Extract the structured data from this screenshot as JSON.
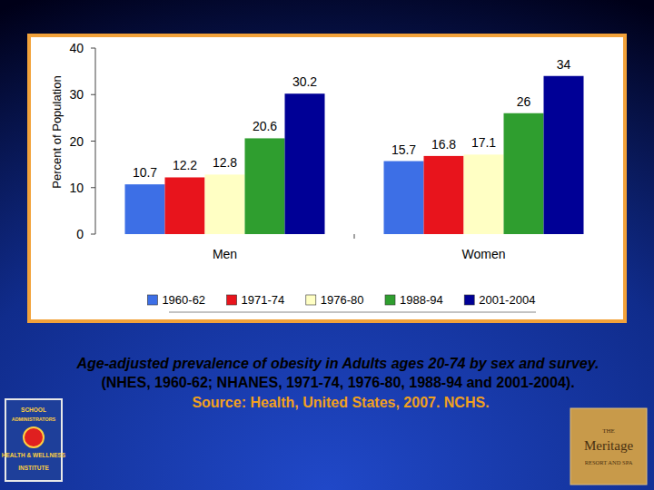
{
  "chart_data": {
    "type": "bar",
    "y_label": "Percent of Population",
    "categories": [
      "Men",
      "Women"
    ],
    "series": [
      {
        "name": "1960-62",
        "color": "#3d6fe6",
        "values": [
          10.7,
          15.7
        ]
      },
      {
        "name": "1971-74",
        "color": "#e8141c",
        "values": [
          12.2,
          16.8
        ]
      },
      {
        "name": "1976-80",
        "color": "#ffffc4",
        "values": [
          12.8,
          17.1
        ]
      },
      {
        "name": "1988-94",
        "color": "#2f9e2f",
        "values": [
          20.6,
          26
        ]
      },
      {
        "name": "2001-2004",
        "color": "#000096",
        "values": [
          30.2,
          34
        ]
      }
    ],
    "ylim": [
      0,
      40
    ],
    "yticks": [
      0,
      10,
      20,
      30,
      40
    ],
    "grid": false,
    "legend": "bottom",
    "data_labels": true
  },
  "caption": {
    "lines": [
      "Age-adjusted prevalence of obesity in Adults ages 20-74 by sex and survey.",
      "(NHES, 1960-62; NHANES, 1971-74, 1976-80, 1988-94 and 2001-2004)."
    ],
    "source": "Source: Health, United States, 2007.  NCHS."
  },
  "logos": {
    "left": [
      "SCHOOL",
      "ADMINISTRATORS",
      "HEALTH & WELLNESS",
      "INSTITUTE"
    ],
    "right": [
      "THE",
      "Meritage",
      "RESORT AND SPA"
    ]
  }
}
